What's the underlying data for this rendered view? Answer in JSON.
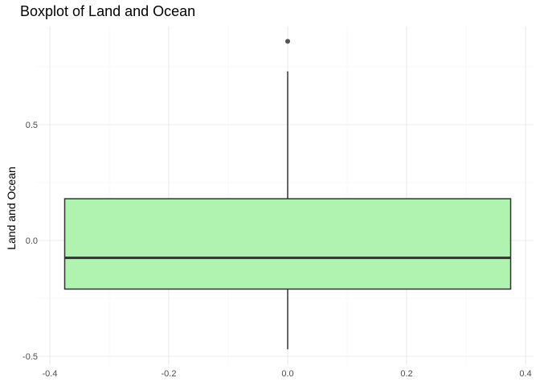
{
  "chart_data": {
    "type": "boxplot",
    "title": "Boxplot of Land and Ocean",
    "xlabel": "",
    "ylabel": "Land and Ocean",
    "xlim": [
      -0.4,
      0.4
    ],
    "ylim": [
      -0.5,
      0.85
    ],
    "x_ticks": [
      "-0.4",
      "-0.2",
      "0.0",
      "0.2",
      "0.4"
    ],
    "x_tick_values": [
      -0.4,
      -0.2,
      0.0,
      0.2,
      0.4
    ],
    "y_ticks": [
      "-0.5",
      "0.0",
      "0.5"
    ],
    "y_tick_values": [
      -0.5,
      0.0,
      0.5
    ],
    "grid": true,
    "box": {
      "x_left": -0.375,
      "x_right": 0.375,
      "whisker_x": 0.0,
      "lower_whisker": -0.47,
      "q1": -0.21,
      "median": -0.075,
      "q3": 0.18,
      "upper_whisker": 0.73,
      "outliers": [
        0.86
      ]
    },
    "colors": {
      "box_fill": "#b0f2b0",
      "box_stroke": "#333333",
      "median": "#333333",
      "outlier": "#555555",
      "grid_major": "#ebebeb",
      "grid_minor": "#f5f5f5"
    }
  }
}
